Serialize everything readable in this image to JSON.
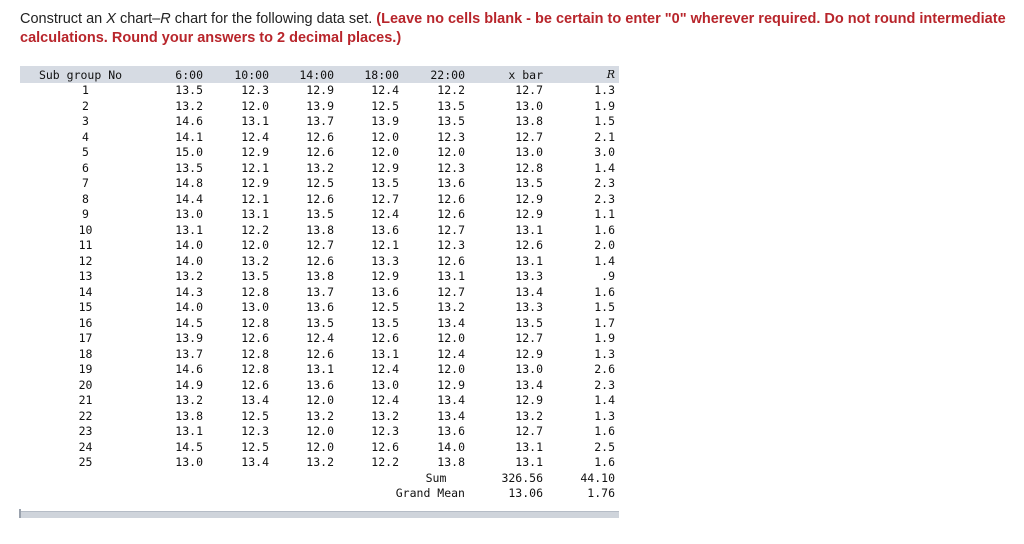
{
  "instructions": {
    "prefix": "Construct an ",
    "x": "X",
    "mid": " chart–",
    "r": "R",
    "suffix": " chart for the following data set. ",
    "warning": "(Leave no cells blank - be certain to enter \"0\" wherever required. Do not round intermediate calculations. Round your answers to 2 decimal places.)"
  },
  "table": {
    "headers": [
      "Sub group No",
      "6:00",
      "10:00",
      "14:00",
      "18:00",
      "22:00",
      "x bar",
      "R"
    ],
    "rows": [
      [
        "1",
        "13.5",
        "12.3",
        "12.9",
        "12.4",
        "12.2",
        "12.7",
        "1.3"
      ],
      [
        "2",
        "13.2",
        "12.0",
        "13.9",
        "12.5",
        "13.5",
        "13.0",
        "1.9"
      ],
      [
        "3",
        "14.6",
        "13.1",
        "13.7",
        "13.9",
        "13.5",
        "13.8",
        "1.5"
      ],
      [
        "4",
        "14.1",
        "12.4",
        "12.6",
        "12.0",
        "12.3",
        "12.7",
        "2.1"
      ],
      [
        "5",
        "15.0",
        "12.9",
        "12.6",
        "12.0",
        "12.0",
        "13.0",
        "3.0"
      ],
      [
        "6",
        "13.5",
        "12.1",
        "13.2",
        "12.9",
        "12.3",
        "12.8",
        "1.4"
      ],
      [
        "7",
        "14.8",
        "12.9",
        "12.5",
        "13.5",
        "13.6",
        "13.5",
        "2.3"
      ],
      [
        "8",
        "14.4",
        "12.1",
        "12.6",
        "12.7",
        "12.6",
        "12.9",
        "2.3"
      ],
      [
        "9",
        "13.0",
        "13.1",
        "13.5",
        "12.4",
        "12.6",
        "12.9",
        "1.1"
      ],
      [
        "10",
        "13.1",
        "12.2",
        "13.8",
        "13.6",
        "12.7",
        "13.1",
        "1.6"
      ],
      [
        "11",
        "14.0",
        "12.0",
        "12.7",
        "12.1",
        "12.3",
        "12.6",
        "2.0"
      ],
      [
        "12",
        "14.0",
        "13.2",
        "12.6",
        "13.3",
        "12.6",
        "13.1",
        "1.4"
      ],
      [
        "13",
        "13.2",
        "13.5",
        "13.8",
        "12.9",
        "13.1",
        "13.3",
        ".9"
      ],
      [
        "14",
        "14.3",
        "12.8",
        "13.7",
        "13.6",
        "12.7",
        "13.4",
        "1.6"
      ],
      [
        "15",
        "14.0",
        "13.0",
        "13.6",
        "12.5",
        "13.2",
        "13.3",
        "1.5"
      ],
      [
        "16",
        "14.5",
        "12.8",
        "13.5",
        "13.5",
        "13.4",
        "13.5",
        "1.7"
      ],
      [
        "17",
        "13.9",
        "12.6",
        "12.4",
        "12.6",
        "12.0",
        "12.7",
        "1.9"
      ],
      [
        "18",
        "13.7",
        "12.8",
        "12.6",
        "13.1",
        "12.4",
        "12.9",
        "1.3"
      ],
      [
        "19",
        "14.6",
        "12.8",
        "13.1",
        "12.4",
        "12.0",
        "13.0",
        "2.6"
      ],
      [
        "20",
        "14.9",
        "12.6",
        "13.6",
        "13.0",
        "12.9",
        "13.4",
        "2.3"
      ],
      [
        "21",
        "13.2",
        "13.4",
        "12.0",
        "12.4",
        "13.4",
        "12.9",
        "1.4"
      ],
      [
        "22",
        "13.8",
        "12.5",
        "13.2",
        "13.2",
        "13.4",
        "13.2",
        "1.3"
      ],
      [
        "23",
        "13.1",
        "12.3",
        "12.0",
        "12.3",
        "13.6",
        "12.7",
        "1.6"
      ],
      [
        "24",
        "14.5",
        "12.5",
        "12.0",
        "12.6",
        "14.0",
        "13.1",
        "2.5"
      ],
      [
        "25",
        "13.0",
        "13.4",
        "13.2",
        "12.2",
        "13.8",
        "13.1",
        "1.6"
      ]
    ],
    "sum": {
      "label": "Sum",
      "xbar": "326.56",
      "r": "44.10"
    },
    "grand_mean": {
      "label": "Grand Mean",
      "xbar": "13.06",
      "r": "1.76"
    }
  }
}
